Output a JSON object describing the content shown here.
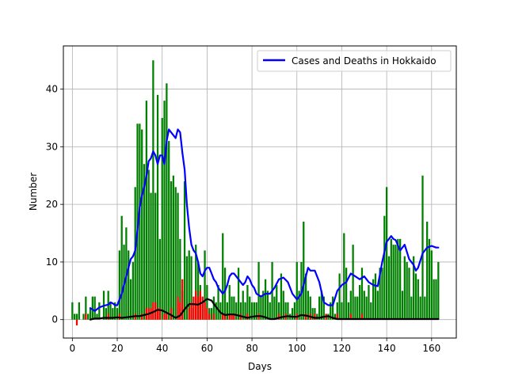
{
  "chart_data": {
    "type": "bar",
    "title": "",
    "xlabel": "Days",
    "ylabel": "Number",
    "xlim": [
      -4,
      171
    ],
    "ylim": [
      -3.2,
      47.5
    ],
    "xticks": [
      0,
      20,
      40,
      60,
      80,
      100,
      120,
      140,
      160
    ],
    "yticks": [
      0,
      10,
      20,
      30,
      40
    ],
    "grid": true,
    "legend": {
      "placement": "upper-right",
      "label": "Cases and Deaths in Hokkaido"
    },
    "colors": {
      "cases": "#008000",
      "deaths": "#ff0000",
      "cases_avg": "#0000ff",
      "deaths_avg": "#000000",
      "grid": "#b0b0b0"
    },
    "series": [
      {
        "kind": "bar",
        "color": "#008000",
        "x": [
          0,
          1,
          2,
          3,
          4,
          5,
          6,
          7,
          8,
          9,
          10,
          11,
          12,
          13,
          14,
          15,
          16,
          17,
          18,
          19,
          20,
          21,
          22,
          23,
          24,
          25,
          26,
          27,
          28,
          29,
          30,
          31,
          32,
          33,
          34,
          35,
          36,
          37,
          38,
          39,
          40,
          41,
          42,
          43,
          44,
          45,
          46,
          47,
          48,
          49,
          50,
          51,
          52,
          53,
          54,
          55,
          56,
          57,
          58,
          59,
          60,
          61,
          62,
          63,
          64,
          65,
          66,
          67,
          68,
          69,
          70,
          71,
          72,
          73,
          74,
          75,
          76,
          77,
          78,
          79,
          80,
          81,
          82,
          83,
          84,
          85,
          86,
          87,
          88,
          89,
          90,
          91,
          92,
          93,
          94,
          95,
          96,
          97,
          98,
          99,
          100,
          101,
          102,
          103,
          104,
          105,
          106,
          107,
          108,
          109,
          110,
          111,
          112,
          113,
          114,
          115,
          116,
          117,
          118,
          119,
          120,
          121,
          122,
          123,
          124,
          125,
          126,
          127,
          128,
          129,
          130,
          131,
          132,
          133,
          134,
          135,
          136,
          137,
          138,
          139,
          140,
          141,
          142,
          143,
          144,
          145,
          146,
          147,
          148,
          149,
          150,
          151,
          152,
          153,
          154,
          155,
          156,
          157,
          158,
          159,
          160,
          161,
          162,
          163
        ],
        "values": [
          3,
          1,
          1,
          3,
          0,
          1,
          4,
          1,
          2,
          4,
          4,
          1,
          3,
          0,
          5,
          2,
          5,
          3,
          2,
          3,
          2,
          12,
          18,
          13,
          16,
          12,
          7,
          10,
          23,
          34,
          34,
          33,
          27,
          38,
          26,
          22,
          45,
          22,
          39,
          14,
          35,
          38,
          41,
          31,
          24,
          25,
          23,
          22,
          14,
          5,
          24,
          11,
          12,
          11,
          2,
          13,
          10,
          6,
          3,
          12,
          6,
          2,
          2,
          4,
          3,
          6,
          3,
          15,
          9,
          3,
          6,
          4,
          4,
          3,
          9,
          3,
          5,
          3,
          6,
          4,
          3,
          3,
          3,
          10,
          4,
          5,
          7,
          5,
          3,
          10,
          4,
          6,
          3,
          8,
          5,
          3,
          3,
          1,
          2,
          3,
          10,
          5,
          10,
          17,
          8,
          5,
          4,
          2,
          2,
          1,
          4,
          5,
          4,
          1,
          1,
          3,
          4,
          1,
          3,
          8,
          3,
          15,
          9,
          3,
          5,
          13,
          4,
          4,
          6,
          9,
          5,
          4,
          6,
          3,
          7,
          8,
          5,
          9,
          9,
          18,
          23,
          11,
          14,
          13,
          13,
          14,
          14,
          5,
          11,
          10,
          9,
          4,
          11,
          8,
          7,
          4,
          25,
          4,
          17,
          14,
          12,
          7,
          7,
          10
        ]
      },
      {
        "kind": "bar",
        "color": "#ff0000",
        "x": [
          2,
          6,
          16,
          21,
          28,
          31,
          33,
          34,
          35,
          36,
          37,
          38,
          39,
          41,
          42,
          44,
          47,
          48,
          49,
          52,
          53,
          54,
          55,
          56,
          57,
          58,
          59,
          60,
          61,
          63,
          67,
          68,
          70,
          71,
          72,
          75,
          78,
          83,
          92,
          95,
          100,
          104,
          106,
          108,
          113,
          118,
          124,
          129
        ],
        "values": [
          -1,
          1,
          1,
          1,
          1,
          1,
          2,
          2,
          2,
          3,
          3,
          2,
          2,
          1,
          1,
          2,
          4,
          3,
          7,
          2,
          3,
          4,
          5,
          4,
          5,
          4,
          3,
          2,
          1,
          1,
          1,
          1,
          1,
          1,
          1,
          1,
          1,
          1,
          1,
          1,
          1,
          1,
          1,
          1,
          1,
          1,
          1,
          1
        ]
      },
      {
        "kind": "line",
        "name": "Cases and Deaths in Hokkaido",
        "color": "#0000ff",
        "x": [
          8,
          10,
          12,
          14,
          16,
          17,
          18,
          19,
          20,
          21,
          22,
          23,
          24,
          25,
          26,
          27,
          28,
          29,
          30,
          31,
          32,
          33,
          34,
          35,
          36,
          37,
          38,
          39,
          40,
          41,
          42,
          43,
          44,
          45,
          46,
          47,
          48,
          49,
          50,
          51,
          52,
          53,
          54,
          55,
          56,
          57,
          58,
          59,
          60,
          61,
          62,
          63,
          64,
          65,
          66,
          67,
          68,
          69,
          70,
          71,
          72,
          73,
          74,
          75,
          76,
          77,
          78,
          79,
          80,
          81,
          82,
          84,
          86,
          88,
          90,
          92,
          94,
          96,
          98,
          100,
          102,
          104,
          105,
          106,
          108,
          110,
          112,
          114,
          116,
          118,
          120,
          122,
          124,
          126,
          128,
          130,
          132,
          134,
          136,
          138,
          140,
          142,
          143,
          144,
          146,
          148,
          150,
          152,
          153,
          154,
          156,
          158,
          160,
          162,
          163
        ],
        "values": [
          2,
          1.5,
          2.1,
          2.4,
          2.6,
          3.0,
          2.8,
          2.5,
          2.5,
          3.5,
          4.5,
          6.0,
          7.5,
          9.0,
          10.5,
          11.0,
          12.0,
          15.5,
          19.5,
          21.5,
          23.0,
          25.0,
          27.5,
          28.0,
          29.2,
          28.5,
          27.0,
          28.5,
          28.5,
          27.0,
          31.0,
          33.0,
          32.5,
          32.0,
          31.5,
          33.0,
          32.5,
          29.0,
          26.0,
          20.0,
          16.0,
          13.0,
          12.0,
          11.5,
          10.0,
          8.0,
          7.5,
          8.5,
          9.0,
          9.0,
          8.0,
          7.0,
          6.5,
          5.5,
          5.0,
          4.5,
          5.0,
          6.0,
          7.5,
          8.0,
          8.0,
          7.5,
          7.0,
          6.5,
          6.0,
          6.5,
          7.5,
          7.0,
          6.0,
          5.5,
          4.5,
          4.0,
          4.5,
          4.5,
          5.5,
          7.0,
          7.3,
          6.5,
          4.5,
          3.5,
          4.5,
          7.5,
          9.0,
          8.5,
          8.5,
          6.5,
          3.0,
          2.5,
          2.5,
          5.0,
          6.0,
          6.5,
          8.0,
          7.5,
          7.0,
          7.5,
          6.5,
          6.0,
          5.8,
          10.0,
          13.5,
          14.5,
          14.0,
          13.8,
          12.0,
          13.0,
          10.5,
          9.5,
          8.5,
          9.0,
          11.5,
          12.5,
          12.8,
          12.5,
          12.5
        ]
      },
      {
        "kind": "line",
        "color": "#000000",
        "x": [
          8,
          10,
          12,
          14,
          16,
          18,
          20,
          22,
          24,
          26,
          28,
          30,
          32,
          34,
          36,
          38,
          40,
          42,
          44,
          46,
          48,
          50,
          52,
          54,
          56,
          58,
          60,
          62,
          64,
          66,
          68,
          70,
          72,
          74,
          76,
          78,
          80,
          82,
          84,
          86,
          88,
          90,
          92,
          94,
          96,
          98,
          100,
          102,
          104,
          106,
          108,
          110,
          112,
          114,
          116,
          118,
          120,
          124,
          128,
          132,
          136,
          140,
          144,
          148,
          152,
          156,
          160,
          163
        ],
        "values": [
          0,
          0.2,
          0.2,
          0.3,
          0.3,
          0.3,
          0.4,
          0.3,
          0.4,
          0.5,
          0.6,
          0.6,
          0.8,
          1.0,
          1.3,
          1.7,
          1.6,
          1.2,
          0.8,
          0.3,
          0.7,
          1.8,
          2.7,
          2.7,
          2.6,
          3.0,
          3.6,
          3.3,
          2.2,
          1.2,
          0.8,
          0.9,
          0.9,
          0.7,
          0.5,
          0.3,
          0.5,
          0.6,
          0.6,
          0.4,
          0.1,
          0.1,
          0.3,
          0.5,
          0.6,
          0.5,
          0.5,
          0.8,
          0.7,
          0.5,
          0.3,
          0.3,
          0.5,
          0.6,
          0.3,
          0.1,
          0.1,
          0.1,
          0.1,
          0.1,
          0.1,
          0.1,
          0.1,
          0.1,
          0.1,
          0.1,
          0.1,
          0.1
        ]
      }
    ]
  }
}
